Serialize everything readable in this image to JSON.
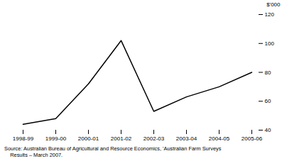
{
  "chart_data": {
    "type": "line",
    "categories": [
      "1998-99",
      "1999-00",
      "2000-01",
      "2001-02",
      "2002-03",
      "2003-04",
      "2004-05",
      "2005-06"
    ],
    "values": [
      44,
      48,
      72,
      102,
      53,
      63,
      70,
      80
    ],
    "color": "#000000",
    "ylabel": "$'000",
    "ylim": [
      40,
      120
    ],
    "yticks": [
      40,
      60,
      80,
      100,
      120
    ],
    "grid": false,
    "caption": [
      "Source: Australian Bureau of Agricultural and Resource Economics, 'Australian Farm Surveys",
      "    Results – March 2007."
    ]
  }
}
